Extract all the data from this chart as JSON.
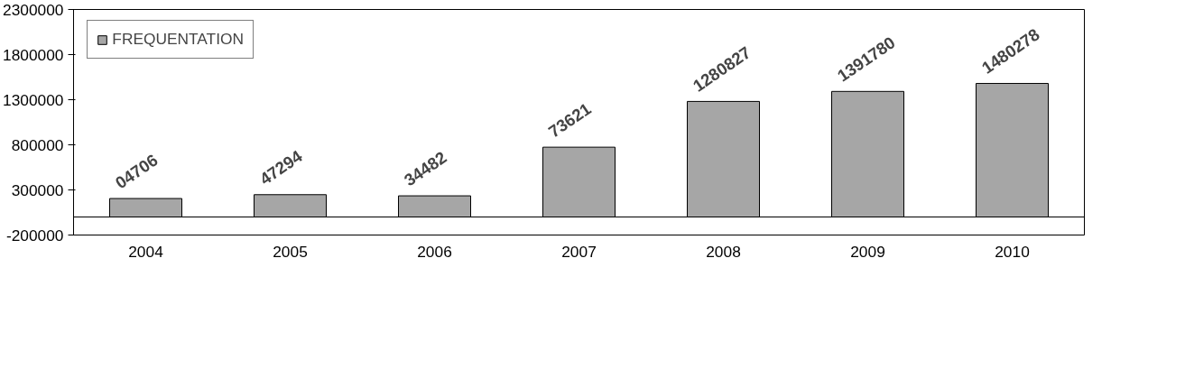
{
  "chart_data": {
    "type": "bar",
    "categories": [
      "2004",
      "2005",
      "2006",
      "2007",
      "2008",
      "2009",
      "2010"
    ],
    "series": [
      {
        "name": "FREQUENTATION",
        "color": "#a6a6a6",
        "values": [
          204706,
          247294,
          234482,
          773621,
          1280827,
          1391780,
          1480278
        ]
      }
    ],
    "annotations": [
      {
        "text": "04706",
        "x": "2004",
        "y": 204706
      },
      {
        "text": "47294",
        "x": "2005",
        "y": 247294
      },
      {
        "text": "34482",
        "x": "2006",
        "y": 234482
      },
      {
        "text": "73621",
        "x": "2007",
        "y": 773621
      },
      {
        "text": "1280827",
        "x": "2008",
        "y": 1280827
      },
      {
        "text": "1391780",
        "x": "2009",
        "y": 1391780
      },
      {
        "text": "1480278",
        "x": "2010",
        "y": 1480278
      }
    ],
    "ylim": [
      -200000,
      2300000
    ],
    "yticks": [
      -200000,
      300000,
      800000,
      1300000,
      1800000,
      2300000
    ],
    "grid": false,
    "legend": "top left"
  }
}
